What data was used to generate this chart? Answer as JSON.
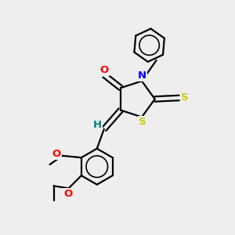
{
  "bg_color": "#eeeeee",
  "bond_color": "#000000",
  "atom_colors": {
    "O": "#ff0000",
    "N": "#0000ff",
    "S": "#cccc00",
    "H": "#008080",
    "C": "#000000"
  },
  "line_width": 1.6,
  "fig_size": [
    3.0,
    3.0
  ],
  "dpi": 100,
  "xlim": [
    0,
    10
  ],
  "ylim": [
    0,
    10
  ]
}
